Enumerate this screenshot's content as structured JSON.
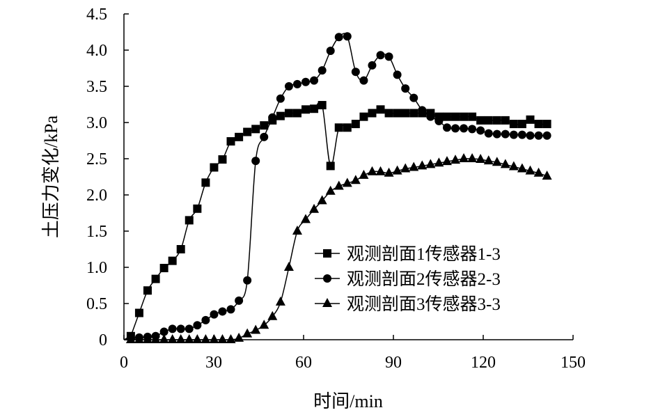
{
  "chart_data": {
    "type": "line",
    "title": "",
    "xlabel": "时间/min",
    "ylabel": "土压力变化/kPa",
    "xlim": [
      0,
      150
    ],
    "ylim": [
      0,
      4.5
    ],
    "xticks": [
      "0",
      "30",
      "60",
      "90",
      "120",
      "150"
    ],
    "yticks": [
      "0",
      "0.5",
      "1.0",
      "1.5",
      "2.0",
      "2.5",
      "3.0",
      "3.5",
      "4.0",
      "4.5"
    ],
    "grid": false,
    "legend_position": "center-right",
    "x": [
      2.3,
      5.1,
      7.9,
      10.6,
      13.4,
      16.2,
      19.0,
      21.8,
      24.5,
      27.3,
      30.1,
      32.9,
      35.7,
      38.4,
      41.2,
      44.0,
      46.8,
      49.6,
      52.3,
      55.1,
      57.9,
      60.7,
      63.5,
      66.2,
      69.0,
      71.8,
      74.6,
      77.4,
      80.1,
      82.9,
      85.7,
      88.5,
      91.3,
      94.0,
      96.8,
      99.6,
      102.4,
      105.2,
      107.9,
      110.7,
      113.5,
      116.3,
      119.1,
      121.8,
      124.6,
      127.4,
      130.2,
      133.0,
      135.7,
      138.5,
      141.3
    ],
    "series": [
      {
        "name": "观测剖面1传感器1-3",
        "marker": "square",
        "values": [
          0.05,
          0.37,
          0.68,
          0.84,
          0.99,
          1.09,
          1.25,
          1.65,
          1.81,
          2.17,
          2.38,
          2.49,
          2.74,
          2.8,
          2.87,
          2.91,
          2.96,
          3.03,
          3.09,
          3.13,
          3.13,
          3.18,
          3.19,
          3.24,
          2.4,
          2.93,
          2.93,
          2.98,
          3.08,
          3.13,
          3.18,
          3.13,
          3.13,
          3.13,
          3.13,
          3.13,
          3.13,
          3.08,
          3.08,
          3.08,
          3.08,
          3.08,
          3.03,
          3.03,
          3.03,
          3.03,
          2.98,
          2.98,
          3.04,
          2.98,
          2.98
        ]
      },
      {
        "name": "观测剖面2传感器2-3",
        "marker": "circle",
        "values": [
          0.02,
          0.03,
          0.04,
          0.05,
          0.11,
          0.15,
          0.15,
          0.15,
          0.2,
          0.27,
          0.35,
          0.39,
          0.42,
          0.54,
          0.82,
          2.47,
          2.8,
          3.07,
          3.33,
          3.5,
          3.53,
          3.56,
          3.58,
          3.72,
          3.99,
          4.18,
          4.19,
          3.7,
          3.58,
          3.79,
          3.93,
          3.91,
          3.66,
          3.47,
          3.34,
          3.17,
          3.08,
          3.02,
          2.93,
          2.92,
          2.92,
          2.91,
          2.89,
          2.85,
          2.84,
          2.84,
          2.83,
          2.83,
          2.82,
          2.82,
          2.82
        ]
      },
      {
        "name": "观测剖面3传感器3-3",
        "marker": "triangle",
        "values": [
          0,
          0,
          0,
          0,
          0,
          0,
          0,
          0,
          0,
          0,
          0,
          0,
          0,
          0.02,
          0.08,
          0.13,
          0.2,
          0.32,
          0.52,
          1.0,
          1.5,
          1.66,
          1.8,
          1.92,
          2.05,
          2.12,
          2.16,
          2.2,
          2.27,
          2.32,
          2.32,
          2.3,
          2.33,
          2.36,
          2.38,
          2.4,
          2.42,
          2.44,
          2.46,
          2.48,
          2.5,
          2.5,
          2.49,
          2.47,
          2.45,
          2.42,
          2.39,
          2.36,
          2.33,
          2.3,
          2.26
        ]
      }
    ]
  }
}
